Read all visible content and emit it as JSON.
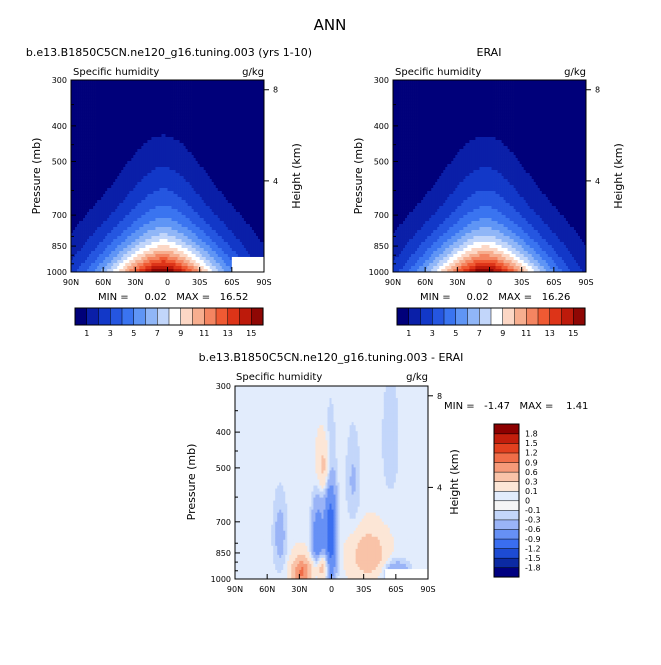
{
  "page": {
    "title": "ANN"
  },
  "chart_data": [
    {
      "type": "heatmap",
      "title": "b.e13.B1850C5CN.ne120_g16.tuning.003 (yrs 1-10)",
      "subtitle_left": "Specific humidity",
      "subtitle_right": "g/kg",
      "ylabel": "Pressure (mb)",
      "ylabel_right": "Height (km)",
      "x_ticks": [
        "90N",
        "60N",
        "30N",
        "0",
        "30S",
        "60S",
        "90S"
      ],
      "y_ticks": [
        "300",
        "400",
        "500",
        "700",
        "850",
        "1000"
      ],
      "y_ticks_right": [
        "8",
        "4"
      ],
      "stats": "MIN =     0.02   MAX =   16.52",
      "colorbar_labels": [
        "1",
        "3",
        "5",
        "7",
        "9",
        "11",
        "13",
        "15"
      ],
      "min": 0.02,
      "max": 16.52,
      "peak_value": 16.52,
      "peak_lat_deg": 4,
      "contour_levels": [
        0,
        1,
        2,
        3,
        4,
        5,
        6,
        7,
        8,
        9,
        10,
        11,
        12,
        13,
        14,
        15,
        16
      ]
    },
    {
      "type": "heatmap",
      "title": "ERAI",
      "subtitle_left": "Specific humidity",
      "subtitle_right": "g/kg",
      "ylabel": "Pressure (mb)",
      "ylabel_right": "Height (km)",
      "x_ticks": [
        "90N",
        "60N",
        "30N",
        "0",
        "30S",
        "60S",
        "90S"
      ],
      "y_ticks": [
        "300",
        "400",
        "500",
        "700",
        "850",
        "1000"
      ],
      "y_ticks_right": [
        "8",
        "4"
      ],
      "stats": "MIN =     0.02   MAX =   16.26",
      "colorbar_labels": [
        "1",
        "3",
        "5",
        "7",
        "9",
        "11",
        "13",
        "15"
      ],
      "min": 0.02,
      "max": 16.26,
      "peak_value": 16.26,
      "peak_lat_deg": 4,
      "contour_levels": [
        0,
        1,
        2,
        3,
        4,
        5,
        6,
        7,
        8,
        9,
        10,
        11,
        12,
        13,
        14,
        15,
        16
      ]
    },
    {
      "type": "heatmap",
      "title": "b.e13.B1850C5CN.ne120_g16.tuning.003 - ERAI",
      "subtitle_left": "Specific humidity",
      "subtitle_right": "g/kg",
      "ylabel": "Pressure (mb)",
      "ylabel_right": "Height (km)",
      "x_ticks": [
        "90N",
        "60N",
        "30N",
        "0",
        "30S",
        "60S",
        "90S"
      ],
      "y_ticks": [
        "300",
        "400",
        "500",
        "700",
        "850",
        "1000"
      ],
      "y_ticks_right": [
        "8",
        "4"
      ],
      "stats": "MIN =   -1.47   MAX =    1.41",
      "min": -1.47,
      "max": 1.41,
      "colorbar_labels": [
        "1.8",
        "1.5",
        "1.2",
        "0.9",
        "0.6",
        "0.3",
        "0.1",
        "0",
        "-0.1",
        "-0.3",
        "-0.6",
        "-0.9",
        "-1.2",
        "-1.5",
        "-1.8"
      ],
      "contour_levels": [
        -1.8,
        -1.5,
        -1.2,
        -0.9,
        -0.6,
        -0.3,
        -0.1,
        0,
        0.1,
        0.3,
        0.6,
        0.9,
        1.2,
        1.5,
        1.8
      ]
    }
  ],
  "colors": {
    "abs_scale": [
      "#00007a",
      "#0a1fa8",
      "#1238c8",
      "#2556e0",
      "#3a74f0",
      "#5f95f5",
      "#90b6f7",
      "#c2d6fa",
      "#ffffff",
      "#fcd7c5",
      "#f7ae8f",
      "#f48561",
      "#ef5a33",
      "#dd3418",
      "#bd1a0b",
      "#8f0704",
      "#7a0000"
    ],
    "diff_scale": [
      "#000080",
      "#0b2aa3",
      "#1d4bd3",
      "#3a6ef0",
      "#6690f5",
      "#9ab4f7",
      "#c3d6fa",
      "#e2ecfc",
      "#fce6d6",
      "#f9c3a8",
      "#f69a79",
      "#f06d48",
      "#e2401f",
      "#c21e0c",
      "#8c0000"
    ],
    "diff_mid": "#f5f5f5"
  }
}
